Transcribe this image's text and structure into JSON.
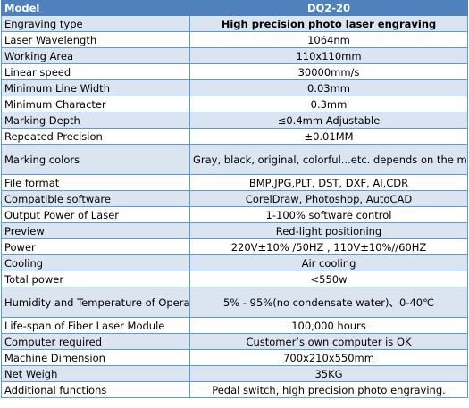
{
  "header": {
    "col1": "Model",
    "col2": "DQ2-20"
  },
  "rows": [
    {
      "label": "Engraving type",
      "value": "High precision photo laser engraving"
    },
    {
      "label": "Laser Wavelength",
      "value": "1064nm"
    },
    {
      "label": "Working Area",
      "value": "110x110mm"
    },
    {
      "label": "Linear speed",
      "value": "30000mm/s"
    },
    {
      "label": "Minimum Line Width",
      "value": "0.03mm"
    },
    {
      "label": "Minimum Character",
      "value": "0.3mm"
    },
    {
      "label": "Marking Depth",
      "value": "≤0.4mm Adjustable"
    },
    {
      "label": "Repeated Precision",
      "value": "±0.01MM"
    },
    {
      "label": "Marking colors",
      "value": "Gray, black, original, colorful...etc. depends on the materials."
    },
    {
      "label": "File format",
      "value": "BMP,JPG,PLT, DST, DXF, AI,CDR"
    },
    {
      "label": "Compatible software",
      "value": "CorelDraw, Photoshop, AutoCAD"
    },
    {
      "label": "Output Power of Laser",
      "value": "1-100% software control"
    },
    {
      "label": "Preview",
      "value": "Red-light positioning"
    },
    {
      "label": "Power",
      "value": "220V±10% /50HZ , 110V±10%//60HZ"
    },
    {
      "label": "Cooling",
      "value": "Air cooling"
    },
    {
      "label": "Total power",
      "value": "<550w"
    },
    {
      "label": "Humidity and Temperature of Operation Environment",
      "value": "5% - 95%(no condensate water)、0-40℃"
    },
    {
      "label": "Life-span of Fiber Laser Module",
      "value": "100,000 hours"
    },
    {
      "label": "Computer required",
      "value": "Customer’s own computer is OK"
    },
    {
      "label": "Machine Dimension",
      "value": "700x210x550mm"
    },
    {
      "label": "Net Weigh",
      "value": "35KG"
    },
    {
      "label": "Additional functions",
      "value": "Pedal switch, high precision photo engraving."
    }
  ]
}
